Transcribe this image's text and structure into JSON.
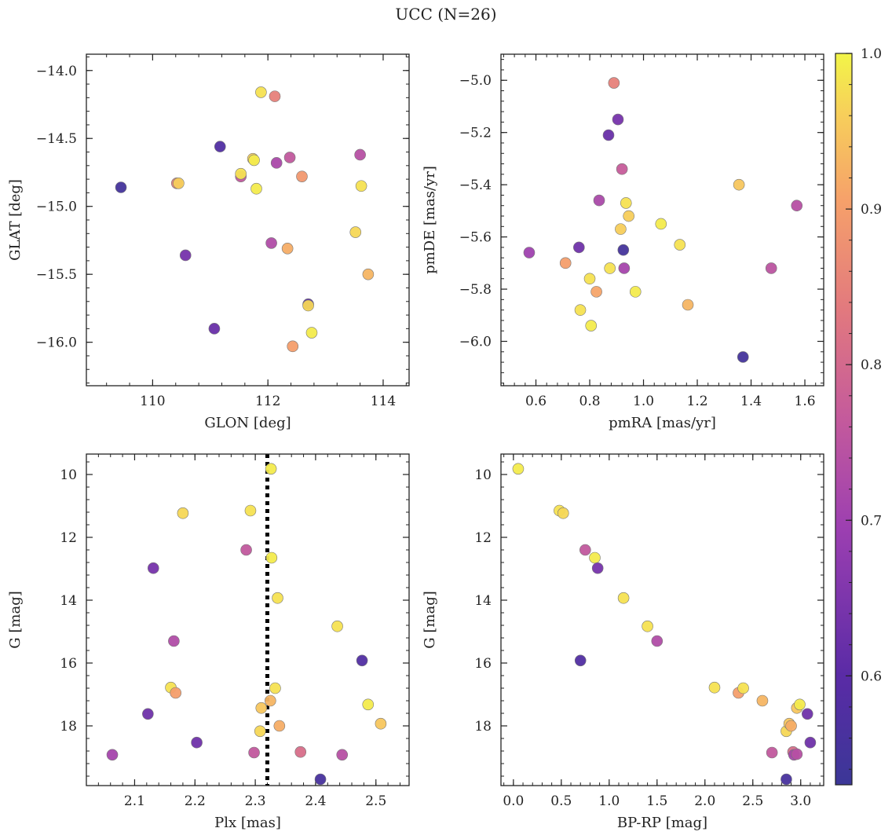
{
  "title": "UCC (N=26)",
  "colorbar": {
    "min": 0.53,
    "max": 1.0,
    "ticks": [
      0.6,
      0.7,
      0.8,
      0.9,
      1.0
    ],
    "tick_labels": [
      "0.6",
      "0.7",
      "0.8",
      "0.9",
      "1.0"
    ],
    "colormap": "plasma"
  },
  "chart_data": [
    {
      "type": "scatter",
      "xlabel": "GLON [deg]",
      "ylabel": "GLAT [deg]",
      "xlim": [
        108.85,
        114.45
      ],
      "ylim": [
        -16.32,
        -13.88
      ],
      "y_inverted": false,
      "xticks": [
        110,
        112,
        114
      ],
      "xtick_labels": [
        "110",
        "112",
        "114"
      ],
      "yticks": [
        -14.0,
        -14.5,
        -15.0,
        -15.5,
        -16.0
      ],
      "ytick_labels": [
        "−14.0",
        "−14.5",
        "−15.0",
        "−15.5",
        "−16.0"
      ],
      "points": [
        {
          "x": 109.45,
          "y": -14.86,
          "c": 0.55
        },
        {
          "x": 110.42,
          "y": -14.83,
          "c": 0.85
        },
        {
          "x": 110.45,
          "y": -14.83,
          "c": 0.96
        },
        {
          "x": 110.57,
          "y": -15.36,
          "c": 0.64
        },
        {
          "x": 111.07,
          "y": -15.9,
          "c": 0.62
        },
        {
          "x": 111.17,
          "y": -14.56,
          "c": 0.58
        },
        {
          "x": 111.53,
          "y": -14.78,
          "c": 0.76
        },
        {
          "x": 111.53,
          "y": -14.76,
          "c": 0.98
        },
        {
          "x": 111.74,
          "y": -14.65,
          "c": 0.96
        },
        {
          "x": 111.76,
          "y": -14.66,
          "c": 0.99
        },
        {
          "x": 111.8,
          "y": -14.87,
          "c": 0.99
        },
        {
          "x": 111.88,
          "y": -14.16,
          "c": 0.98
        },
        {
          "x": 112.06,
          "y": -15.27,
          "c": 0.73
        },
        {
          "x": 112.12,
          "y": -14.19,
          "c": 0.85
        },
        {
          "x": 112.15,
          "y": -14.68,
          "c": 0.72
        },
        {
          "x": 112.34,
          "y": -15.31,
          "c": 0.92
        },
        {
          "x": 112.38,
          "y": -14.64,
          "c": 0.76
        },
        {
          "x": 112.43,
          "y": -16.03,
          "c": 0.9
        },
        {
          "x": 112.59,
          "y": -14.78,
          "c": 0.89
        },
        {
          "x": 112.7,
          "y": -15.72,
          "c": 0.6
        },
        {
          "x": 112.7,
          "y": -15.73,
          "c": 0.97
        },
        {
          "x": 112.76,
          "y": -15.93,
          "c": 0.99
        },
        {
          "x": 113.52,
          "y": -15.19,
          "c": 0.97
        },
        {
          "x": 113.6,
          "y": -14.62,
          "c": 0.74
        },
        {
          "x": 113.62,
          "y": -14.85,
          "c": 0.98
        },
        {
          "x": 113.74,
          "y": -15.5,
          "c": 0.93
        }
      ]
    },
    {
      "type": "scatter",
      "xlabel": "pmRA [mas/yr]",
      "ylabel": "pmDE [mas/yr]",
      "xlim": [
        0.47,
        1.67
      ],
      "ylim": [
        -6.17,
        -4.9
      ],
      "y_inverted": false,
      "xticks": [
        0.6,
        0.8,
        1.0,
        1.2,
        1.4,
        1.6
      ],
      "xtick_labels": [
        "0.6",
        "0.8",
        "1.0",
        "1.2",
        "1.4",
        "1.6"
      ],
      "yticks": [
        -5.0,
        -5.2,
        -5.4,
        -5.6,
        -5.8,
        -6.0
      ],
      "ytick_labels": [
        "−5.0",
        "−5.2",
        "−5.4",
        "−5.6",
        "−5.8",
        "−6.0"
      ],
      "points": [
        {
          "x": 0.575,
          "y": -5.66,
          "c": 0.7
        },
        {
          "x": 0.71,
          "y": -5.7,
          "c": 0.9
        },
        {
          "x": 0.76,
          "y": -5.64,
          "c": 0.63
        },
        {
          "x": 0.765,
          "y": -5.88,
          "c": 0.98
        },
        {
          "x": 0.8,
          "y": -5.76,
          "c": 0.98
        },
        {
          "x": 0.805,
          "y": -5.94,
          "c": 0.99
        },
        {
          "x": 0.825,
          "y": -5.81,
          "c": 0.91
        },
        {
          "x": 0.835,
          "y": -5.46,
          "c": 0.72
        },
        {
          "x": 0.87,
          "y": -5.21,
          "c": 0.62
        },
        {
          "x": 0.875,
          "y": -5.72,
          "c": 0.98
        },
        {
          "x": 0.89,
          "y": -5.01,
          "c": 0.85
        },
        {
          "x": 0.905,
          "y": -5.15,
          "c": 0.64
        },
        {
          "x": 0.915,
          "y": -5.57,
          "c": 0.96
        },
        {
          "x": 0.92,
          "y": -5.34,
          "c": 0.77
        },
        {
          "x": 0.925,
          "y": -5.65,
          "c": 0.55
        },
        {
          "x": 0.928,
          "y": -5.72,
          "c": 0.71
        },
        {
          "x": 0.935,
          "y": -5.47,
          "c": 0.98
        },
        {
          "x": 0.945,
          "y": -5.52,
          "c": 0.96
        },
        {
          "x": 0.97,
          "y": -5.81,
          "c": 0.99
        },
        {
          "x": 1.065,
          "y": -5.55,
          "c": 0.99
        },
        {
          "x": 1.135,
          "y": -5.63,
          "c": 0.98
        },
        {
          "x": 1.165,
          "y": -5.86,
          "c": 0.93
        },
        {
          "x": 1.355,
          "y": -5.4,
          "c": 0.95
        },
        {
          "x": 1.37,
          "y": -6.06,
          "c": 0.55
        },
        {
          "x": 1.475,
          "y": -5.72,
          "c": 0.75
        },
        {
          "x": 1.57,
          "y": -5.48,
          "c": 0.74
        }
      ]
    },
    {
      "type": "scatter",
      "xlabel": "Plx [mas]",
      "ylabel": "G [mag]",
      "xlim": [
        2.02,
        2.555
      ],
      "ylim": [
        9.35,
        19.9
      ],
      "y_inverted": true,
      "xticks": [
        2.1,
        2.2,
        2.3,
        2.4,
        2.5
      ],
      "xtick_labels": [
        "2.1",
        "2.2",
        "2.3",
        "2.4",
        "2.5"
      ],
      "yticks": [
        10,
        12,
        14,
        16,
        18
      ],
      "ytick_labels": [
        "10",
        "12",
        "14",
        "16",
        "18"
      ],
      "vline": 2.32,
      "points": [
        {
          "x": 2.063,
          "y": 18.92,
          "c": 0.71
        },
        {
          "x": 2.122,
          "y": 17.62,
          "c": 0.63
        },
        {
          "x": 2.131,
          "y": 12.98,
          "c": 0.64
        },
        {
          "x": 2.16,
          "y": 16.78,
          "c": 0.98
        },
        {
          "x": 2.165,
          "y": 15.3,
          "c": 0.73
        },
        {
          "x": 2.168,
          "y": 16.95,
          "c": 0.9
        },
        {
          "x": 2.18,
          "y": 11.23,
          "c": 0.97
        },
        {
          "x": 2.203,
          "y": 18.53,
          "c": 0.63
        },
        {
          "x": 2.285,
          "y": 12.4,
          "c": 0.76
        },
        {
          "x": 2.292,
          "y": 11.15,
          "c": 0.98
        },
        {
          "x": 2.298,
          "y": 18.85,
          "c": 0.76
        },
        {
          "x": 2.308,
          "y": 18.17,
          "c": 0.97
        },
        {
          "x": 2.31,
          "y": 17.43,
          "c": 0.95
        },
        {
          "x": 2.325,
          "y": 17.2,
          "c": 0.93
        },
        {
          "x": 2.326,
          "y": 9.82,
          "c": 0.99
        },
        {
          "x": 2.327,
          "y": 12.65,
          "c": 0.99
        },
        {
          "x": 2.333,
          "y": 16.8,
          "c": 0.98
        },
        {
          "x": 2.337,
          "y": 13.93,
          "c": 0.98
        },
        {
          "x": 2.34,
          "y": 18.0,
          "c": 0.92
        },
        {
          "x": 2.375,
          "y": 18.83,
          "c": 0.81
        },
        {
          "x": 2.408,
          "y": 19.7,
          "c": 0.56
        },
        {
          "x": 2.436,
          "y": 14.83,
          "c": 0.98
        },
        {
          "x": 2.444,
          "y": 18.92,
          "c": 0.74
        },
        {
          "x": 2.477,
          "y": 15.92,
          "c": 0.58
        },
        {
          "x": 2.487,
          "y": 17.32,
          "c": 0.99
        },
        {
          "x": 2.508,
          "y": 17.93,
          "c": 0.95
        }
      ]
    },
    {
      "type": "scatter",
      "xlabel": "BP-RP [mag]",
      "ylabel": "G [mag]",
      "xlim": [
        -0.13,
        3.24
      ],
      "ylim": [
        9.35,
        19.9
      ],
      "y_inverted": true,
      "xticks": [
        0.0,
        0.5,
        1.0,
        1.5,
        2.0,
        2.5,
        3.0
      ],
      "xtick_labels": [
        "0.0",
        "0.5",
        "1.0",
        "1.5",
        "2.0",
        "2.5",
        "3.0"
      ],
      "yticks": [
        10,
        12,
        14,
        16,
        18
      ],
      "ytick_labels": [
        "10",
        "12",
        "14",
        "16",
        "18"
      ],
      "points": [
        {
          "x": 0.05,
          "y": 9.82,
          "c": 0.99
        },
        {
          "x": 0.48,
          "y": 11.15,
          "c": 0.98
        },
        {
          "x": 0.52,
          "y": 11.23,
          "c": 0.97
        },
        {
          "x": 0.7,
          "y": 15.92,
          "c": 0.58
        },
        {
          "x": 0.75,
          "y": 12.4,
          "c": 0.76
        },
        {
          "x": 0.85,
          "y": 12.65,
          "c": 0.99
        },
        {
          "x": 0.88,
          "y": 12.98,
          "c": 0.64
        },
        {
          "x": 1.15,
          "y": 13.93,
          "c": 0.98
        },
        {
          "x": 1.4,
          "y": 14.83,
          "c": 0.98
        },
        {
          "x": 1.5,
          "y": 15.3,
          "c": 0.73
        },
        {
          "x": 2.1,
          "y": 16.78,
          "c": 0.98
        },
        {
          "x": 2.35,
          "y": 16.95,
          "c": 0.9
        },
        {
          "x": 2.4,
          "y": 16.8,
          "c": 0.98
        },
        {
          "x": 2.6,
          "y": 17.2,
          "c": 0.93
        },
        {
          "x": 2.7,
          "y": 18.85,
          "c": 0.76
        },
        {
          "x": 2.85,
          "y": 18.17,
          "c": 0.97
        },
        {
          "x": 2.85,
          "y": 19.7,
          "c": 0.56
        },
        {
          "x": 2.88,
          "y": 17.93,
          "c": 0.95
        },
        {
          "x": 2.9,
          "y": 18.0,
          "c": 0.92
        },
        {
          "x": 2.92,
          "y": 18.83,
          "c": 0.81
        },
        {
          "x": 2.93,
          "y": 18.92,
          "c": 0.71
        },
        {
          "x": 2.96,
          "y": 18.9,
          "c": 0.74
        },
        {
          "x": 2.96,
          "y": 17.43,
          "c": 0.95
        },
        {
          "x": 2.99,
          "y": 17.32,
          "c": 0.99
        },
        {
          "x": 3.07,
          "y": 17.62,
          "c": 0.63
        },
        {
          "x": 3.1,
          "y": 18.53,
          "c": 0.63
        }
      ]
    }
  ]
}
